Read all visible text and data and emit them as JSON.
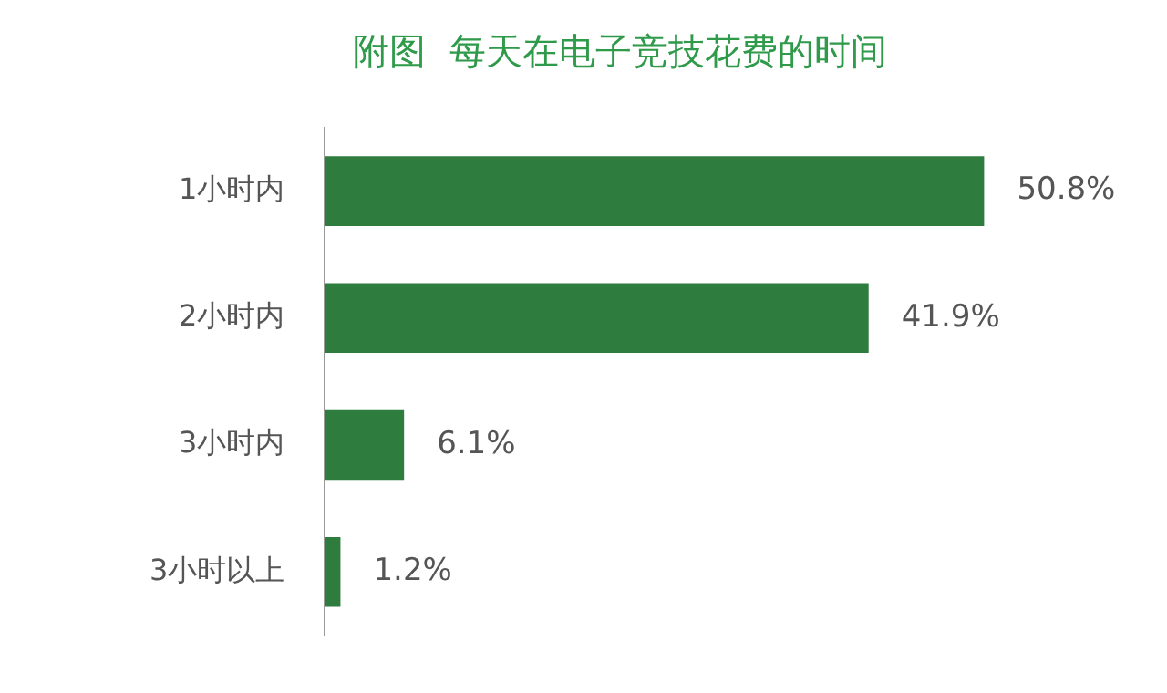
{
  "chart_data": {
    "type": "bar",
    "orientation": "horizontal",
    "title": "附图  每天在电子竞技花费的时间",
    "categories": [
      "1小时内",
      "2小时内",
      "3小时内",
      "3小时以上"
    ],
    "values": [
      50.8,
      41.9,
      6.1,
      1.2
    ],
    "value_labels": [
      "50.8%",
      "41.9%",
      "6.1%",
      "1.2%"
    ],
    "color": "#2e7d3e"
  }
}
